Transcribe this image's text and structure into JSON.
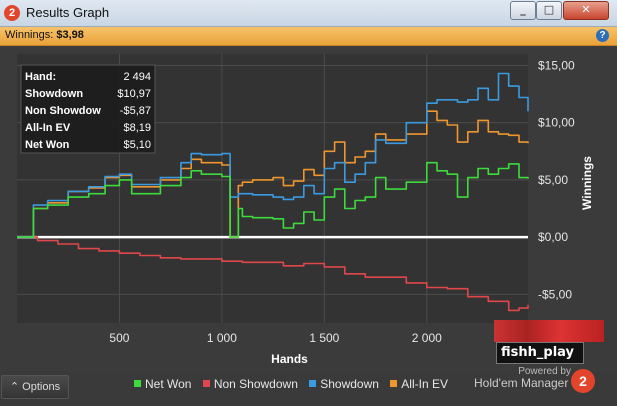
{
  "window": {
    "title": "Results Graph"
  },
  "winnings_bar": {
    "label": "Winnings:",
    "value": "$3,98"
  },
  "stats": [
    {
      "label": "Hand:",
      "value": "2 494"
    },
    {
      "label": "Showdown",
      "value": "$10,97"
    },
    {
      "label": "Non Showdow",
      "value": "-$5,87"
    },
    {
      "label": "All-In EV",
      "value": "$8,19"
    },
    {
      "label": "Net Won",
      "value": "$5,10"
    }
  ],
  "footer": {
    "options_label": "Options",
    "powered_by": "Powered by",
    "brand": "Hold'em Manager"
  },
  "hud": {
    "player": "fishh_play"
  },
  "colors": {
    "net_won": "#3ddc3d",
    "non_showdown": "#e0474a",
    "showdown": "#3b9be0",
    "all_in_ev": "#f0962e"
  },
  "chart_data": {
    "type": "line",
    "xlabel": "Hands",
    "ylabel": "Winnings",
    "xlim": [
      0,
      2494
    ],
    "ylim": [
      -7.5,
      16
    ],
    "x_ticks": [
      500,
      1000,
      1500,
      2000
    ],
    "x_tick_labels": [
      "500",
      "1 000",
      "1 500",
      "2 000"
    ],
    "y_ticks": [
      -5,
      0,
      5,
      10,
      15
    ],
    "y_tick_labels": [
      "-$5,00",
      "$0,00",
      "$5,00",
      "$10,00",
      "$15,00"
    ],
    "legend": [
      "Net Won",
      "Non Showdown",
      "Showdown",
      "All-In EV"
    ],
    "legend_position": "bottom",
    "series": [
      {
        "name": "Net Won",
        "color": "#3ddc3d",
        "x": [
          0,
          60,
          80,
          150,
          250,
          350,
          430,
          500,
          560,
          700,
          800,
          850,
          900,
          1000,
          1040,
          1060,
          1080,
          1100,
          1150,
          1250,
          1300,
          1350,
          1400,
          1450,
          1500,
          1550,
          1600,
          1650,
          1700,
          1750,
          1800,
          1900,
          2000,
          2050,
          2100,
          2150,
          2200,
          2250,
          2300,
          2350,
          2400,
          2450,
          2494
        ],
        "y": [
          0,
          0,
          2.5,
          2.8,
          3.5,
          3.8,
          4.5,
          5,
          3.8,
          4.5,
          5.2,
          5.8,
          5.5,
          5.3,
          0,
          0,
          2.5,
          1.8,
          1.7,
          1.6,
          0.8,
          1.2,
          2.2,
          1.5,
          3.5,
          4.2,
          2.5,
          3.2,
          3.5,
          5.2,
          4.2,
          4.8,
          6.5,
          5.8,
          5.5,
          3.5,
          5.2,
          6,
          5.5,
          6,
          6.4,
          5.2,
          5.1
        ]
      },
      {
        "name": "Non Showdown",
        "color": "#e0474a",
        "x": [
          0,
          100,
          200,
          300,
          400,
          500,
          600,
          700,
          800,
          900,
          1000,
          1100,
          1200,
          1300,
          1400,
          1500,
          1600,
          1700,
          1800,
          1900,
          2000,
          2100,
          2200,
          2300,
          2400,
          2450,
          2494
        ],
        "y": [
          0,
          -0.3,
          -0.6,
          -1,
          -1.2,
          -1.4,
          -1.6,
          -1.8,
          -1.9,
          -1.9,
          -2.1,
          -2.2,
          -2.2,
          -2.5,
          -2.3,
          -2.6,
          -3.2,
          -3.5,
          -3.5,
          -4,
          -4.4,
          -4.5,
          -5.2,
          -5.6,
          -6.4,
          -6.2,
          -5.9
        ]
      },
      {
        "name": "Showdown",
        "color": "#3b9be0",
        "x": [
          0,
          60,
          80,
          150,
          250,
          350,
          430,
          500,
          560,
          700,
          800,
          850,
          900,
          1000,
          1040,
          1060,
          1080,
          1100,
          1150,
          1250,
          1300,
          1350,
          1400,
          1450,
          1500,
          1550,
          1600,
          1650,
          1700,
          1750,
          1800,
          1900,
          2000,
          2050,
          2100,
          2150,
          2200,
          2250,
          2300,
          2350,
          2400,
          2450,
          2494
        ],
        "y": [
          0,
          0,
          2.8,
          3.2,
          4,
          4.4,
          5.3,
          5.5,
          4.6,
          5.2,
          6.5,
          7.3,
          7.2,
          7.3,
          3.5,
          3.5,
          3.8,
          3.8,
          3.7,
          3.5,
          3.3,
          3.5,
          4.5,
          3.8,
          6,
          6.5,
          4.8,
          5.5,
          6.5,
          8.5,
          8.2,
          10,
          11.7,
          12,
          12,
          11.8,
          12,
          13,
          12,
          14.3,
          13.2,
          12.2,
          11
        ]
      },
      {
        "name": "All-In EV",
        "color": "#f0962e",
        "x": [
          0,
          60,
          80,
          150,
          250,
          350,
          430,
          500,
          560,
          700,
          800,
          850,
          900,
          1000,
          1040,
          1060,
          1080,
          1100,
          1150,
          1250,
          1300,
          1350,
          1400,
          1450,
          1500,
          1550,
          1600,
          1650,
          1700,
          1750,
          1800,
          1900,
          2000,
          2050,
          2100,
          2150,
          2200,
          2250,
          2300,
          2350,
          2400,
          2450,
          2494
        ],
        "y": [
          0,
          0,
          2.5,
          3,
          4,
          4.3,
          5.2,
          5.4,
          4.4,
          5,
          6,
          6.8,
          6.5,
          6.3,
          0,
          0,
          4.5,
          4.8,
          5,
          5.2,
          4.5,
          4.9,
          5.9,
          5.4,
          7.5,
          8.3,
          6.5,
          7,
          7.5,
          9,
          8.5,
          9,
          11,
          10.2,
          9.8,
          8.3,
          9.2,
          10.2,
          9.2,
          9,
          8.9,
          8.3,
          8.2
        ]
      }
    ]
  }
}
